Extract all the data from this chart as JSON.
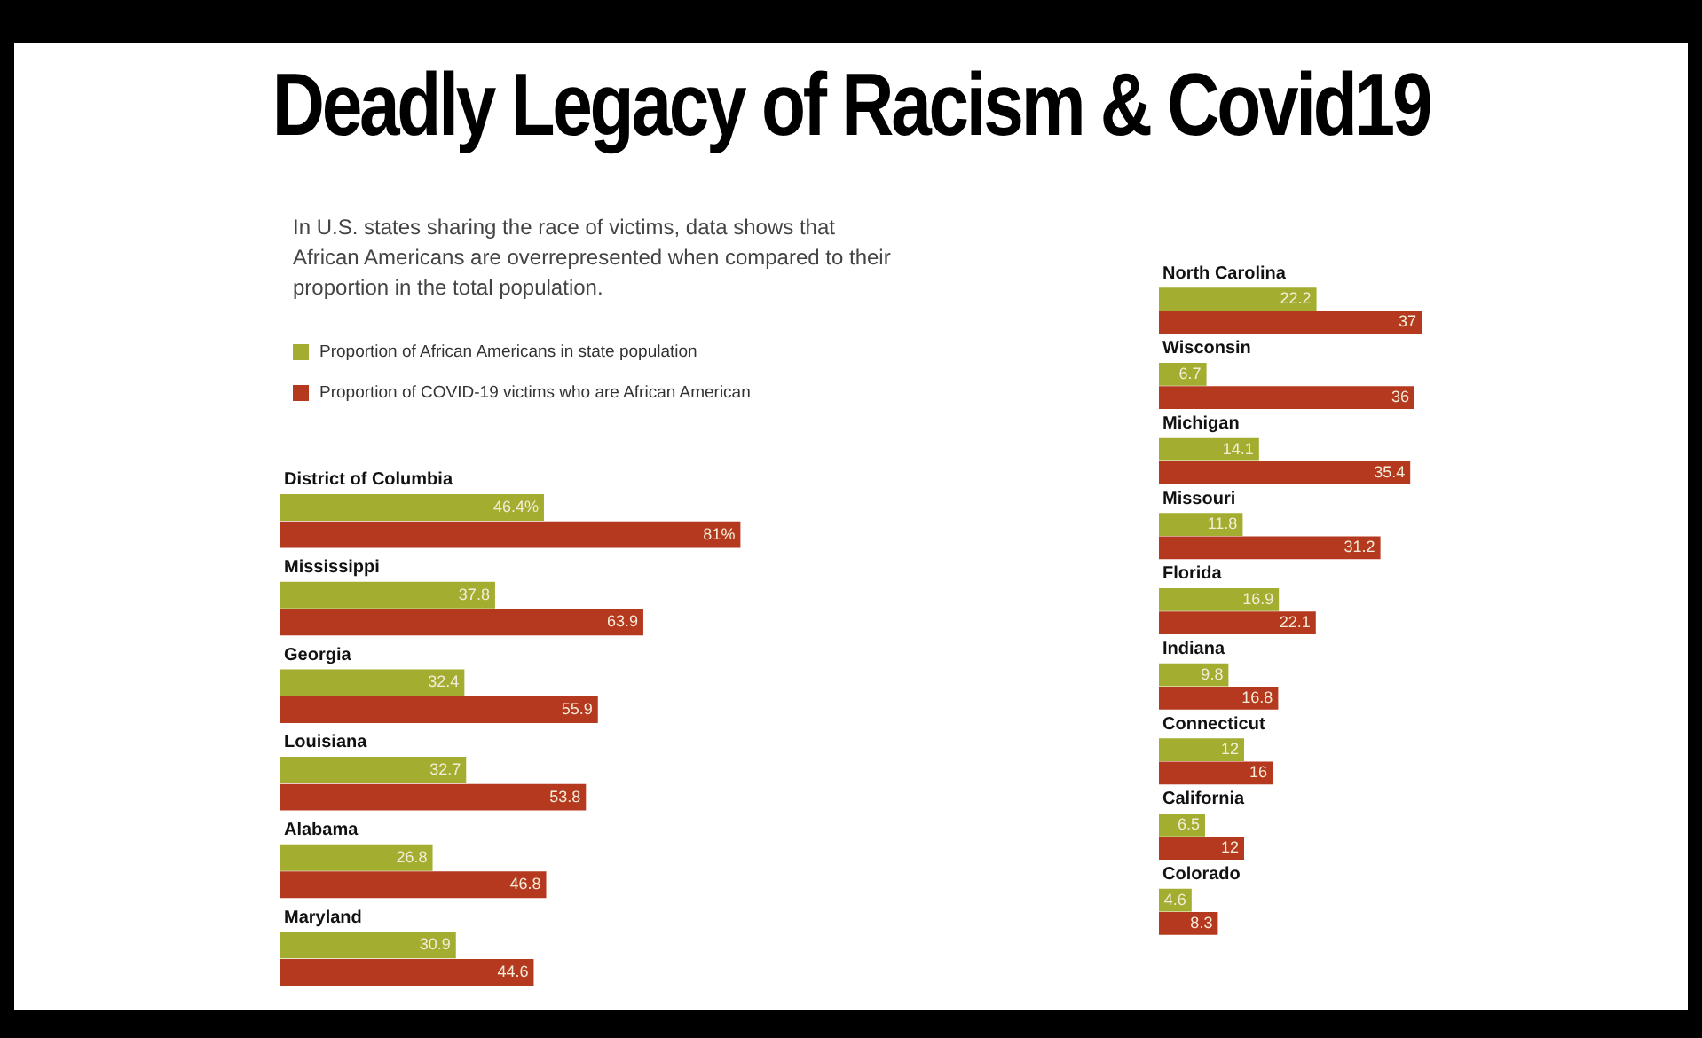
{
  "chart_data": [
    {
      "type": "bar",
      "orientation": "horizontal",
      "title": "Deadly Legacy of Racism & Covid19",
      "subtitle": "In U.S. states sharing the race of victims, data shows that African Americans are overrepresented when compared to their proportion in the total population.",
      "legend": "top left",
      "data_labels": true,
      "categories": [
        "District of Columbia",
        "Mississippi",
        "Georgia",
        "Louisiana",
        "Alabama",
        "Maryland"
      ],
      "series": [
        {
          "name": "Proportion of African Americans in state population",
          "color": "#a3ad2f",
          "values": [
            46.4,
            37.8,
            32.4,
            32.7,
            26.8,
            30.9
          ],
          "value_labels": [
            "46.4%",
            "37.8",
            "32.4",
            "32.7",
            "26.8",
            "30.9"
          ]
        },
        {
          "name": "Proportion of COVID-19 victims who are African American",
          "color": "#b5391f",
          "values": [
            81,
            63.9,
            55.9,
            53.8,
            46.8,
            44.6
          ],
          "value_labels": [
            "81%",
            "63.9",
            "55.9",
            "53.8",
            "46.8",
            "44.6"
          ]
        }
      ]
    },
    {
      "type": "bar",
      "orientation": "horizontal",
      "data_labels": true,
      "categories": [
        "North Carolina",
        "Wisconsin",
        "Michigan",
        "Missouri",
        "Florida",
        "Indiana",
        "Connecticut",
        "California",
        "Colorado"
      ],
      "series": [
        {
          "color": "#a3ad2f",
          "values": [
            22.2,
            6.7,
            14.1,
            11.8,
            16.9,
            9.8,
            12,
            6.5,
            4.6
          ]
        },
        {
          "color": "#b5391f",
          "values": [
            37,
            36,
            35.4,
            31.2,
            22.1,
            16.8,
            16,
            12,
            8.3
          ]
        }
      ]
    }
  ]
}
